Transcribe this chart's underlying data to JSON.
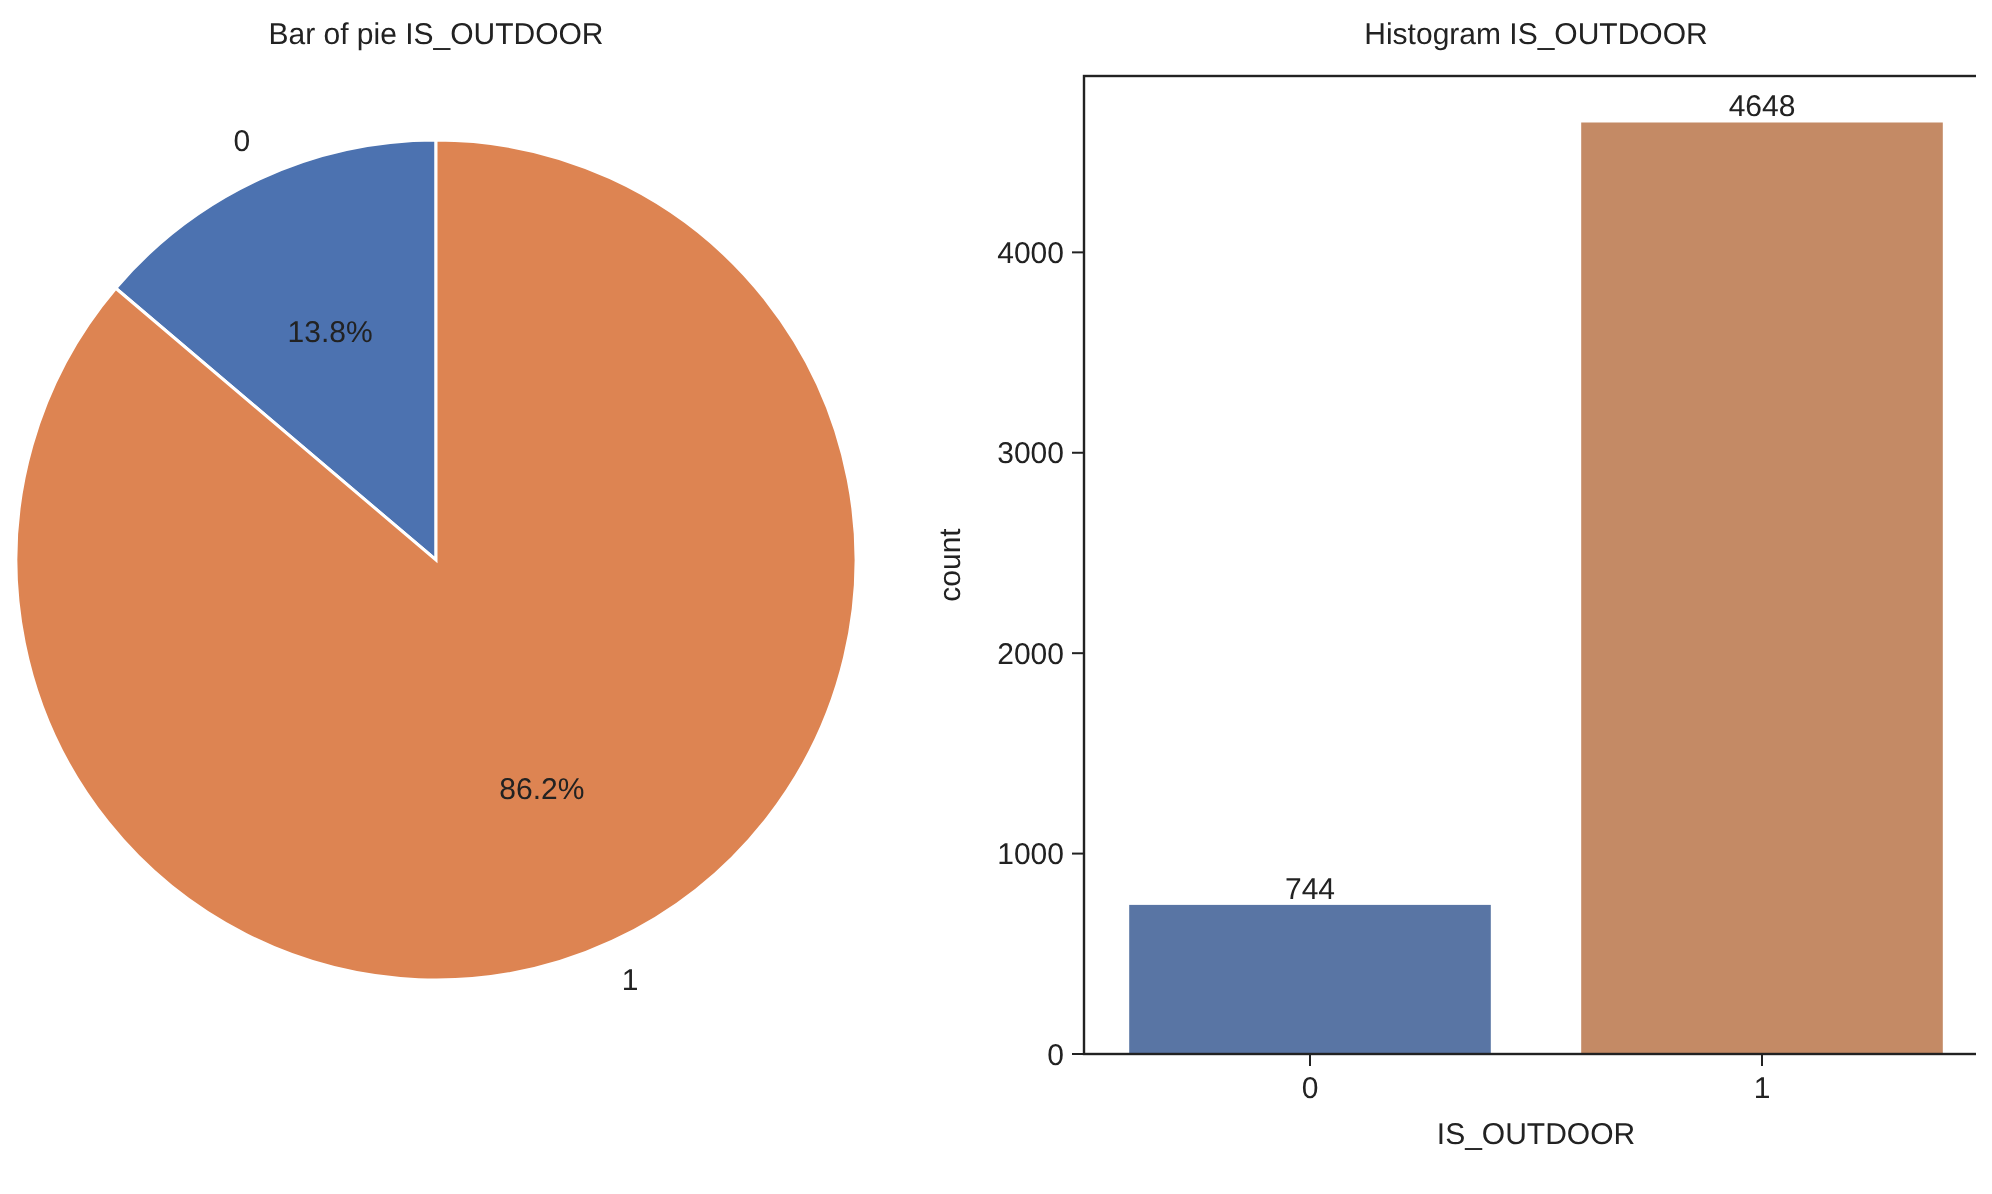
{
  "chart_data": [
    {
      "type": "pie",
      "title": "Bar of pie IS_OUTDOOR",
      "categories": [
        "0",
        "1"
      ],
      "values": [
        13.8,
        86.2
      ],
      "colors": [
        "#4c72b0",
        "#dd8452"
      ],
      "value_labels": [
        "13.8%",
        "86.2%"
      ]
    },
    {
      "type": "bar",
      "title": "Histogram IS_OUTDOOR",
      "categories": [
        "0",
        "1"
      ],
      "values": [
        744,
        4648
      ],
      "colors": [
        "#5975a4",
        "#c48a65"
      ],
      "xlabel": "IS_OUTDOOR",
      "ylabel": "count",
      "ylim": [
        0,
        4880
      ],
      "yticks": [
        0,
        1000,
        2000,
        3000,
        4000
      ],
      "data_labels": true,
      "grid": false
    }
  ]
}
